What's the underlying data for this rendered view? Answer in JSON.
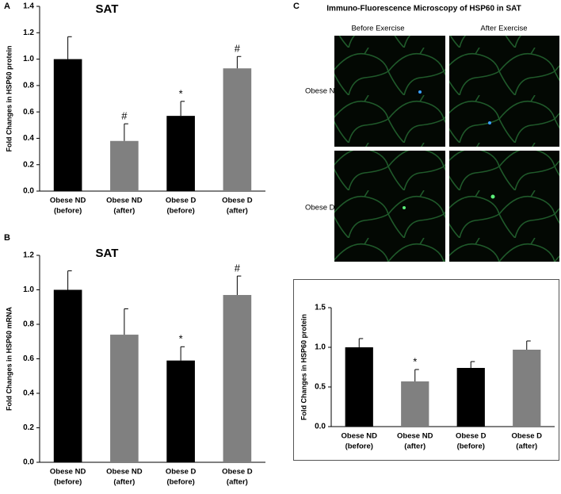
{
  "chart_data": [
    {
      "type": "bar",
      "panel": "A",
      "title": "SAT",
      "ylabel": "Fold Changes in HSP60 protein",
      "categories": [
        [
          "Obese ND",
          "(before)"
        ],
        [
          "Obese  ND",
          "(after)"
        ],
        [
          "Obese D",
          "(before)"
        ],
        [
          "Obese D",
          "(after)"
        ]
      ],
      "values": [
        1.0,
        0.38,
        0.57,
        0.93
      ],
      "errors": [
        0.17,
        0.13,
        0.11,
        0.09
      ],
      "annotations": [
        null,
        "#",
        "*",
        "#"
      ],
      "colors": [
        "#000000",
        "#808080",
        "#000000",
        "#808080"
      ],
      "ylim": [
        0,
        1.4
      ],
      "yticks": [
        {
          "value": 0,
          "label": "0.0"
        },
        0.2,
        0.4,
        0.6,
        0.8,
        {
          "value": 1,
          "label": "1.0"
        },
        1.2,
        1.4
      ],
      "grid": false
    },
    {
      "type": "bar",
      "panel": "B",
      "title": "SAT",
      "ylabel": "Fold Changes in HSP60 mRNA",
      "categories": [
        [
          "Obese ND",
          "(before)"
        ],
        [
          "Obese  ND",
          "(after)"
        ],
        [
          "Obese D",
          "(before)"
        ],
        [
          "Obese D",
          "(after)"
        ]
      ],
      "values": [
        1.0,
        0.74,
        0.59,
        0.97
      ],
      "errors": [
        0.11,
        0.15,
        0.08,
        0.11
      ],
      "annotations": [
        null,
        null,
        "*",
        "#"
      ],
      "colors": [
        "#000000",
        "#808080",
        "#000000",
        "#808080"
      ],
      "ylim": [
        0,
        1.2
      ],
      "yticks": [
        {
          "value": 0,
          "label": "0.0"
        },
        0.2,
        0.4,
        0.6,
        0.8,
        {
          "value": 1,
          "label": "1.0"
        },
        1.2
      ],
      "grid": false
    },
    {
      "type": "bar",
      "ylabel": "Fold Changes in HSP60 protein",
      "categories": [
        [
          "Obese ND",
          "(before)"
        ],
        [
          "Obese  ND",
          "(after)"
        ],
        [
          "Obese D",
          "(before)"
        ],
        [
          "Obese D",
          "(after)"
        ]
      ],
      "values": [
        1.0,
        0.57,
        0.74,
        0.97
      ],
      "errors": [
        0.11,
        0.15,
        0.08,
        0.11
      ],
      "annotations": [
        null,
        "*",
        null,
        null
      ],
      "colors": [
        "#000000",
        "#808080",
        "#000000",
        "#808080"
      ],
      "ylim": [
        0,
        1.5
      ],
      "yticks": [
        {
          "value": 0,
          "label": "0.0"
        },
        0.5,
        {
          "value": 1,
          "label": "1.0"
        },
        1.5
      ],
      "grid": false
    }
  ],
  "microscopy": {
    "panel": "C",
    "title": "Immuno-Fluorescence Microscopy of HSP60 in SAT",
    "columns": [
      "Before Exercise",
      "After Exercise"
    ],
    "rows": [
      "Obese ND",
      "Obese D"
    ]
  }
}
